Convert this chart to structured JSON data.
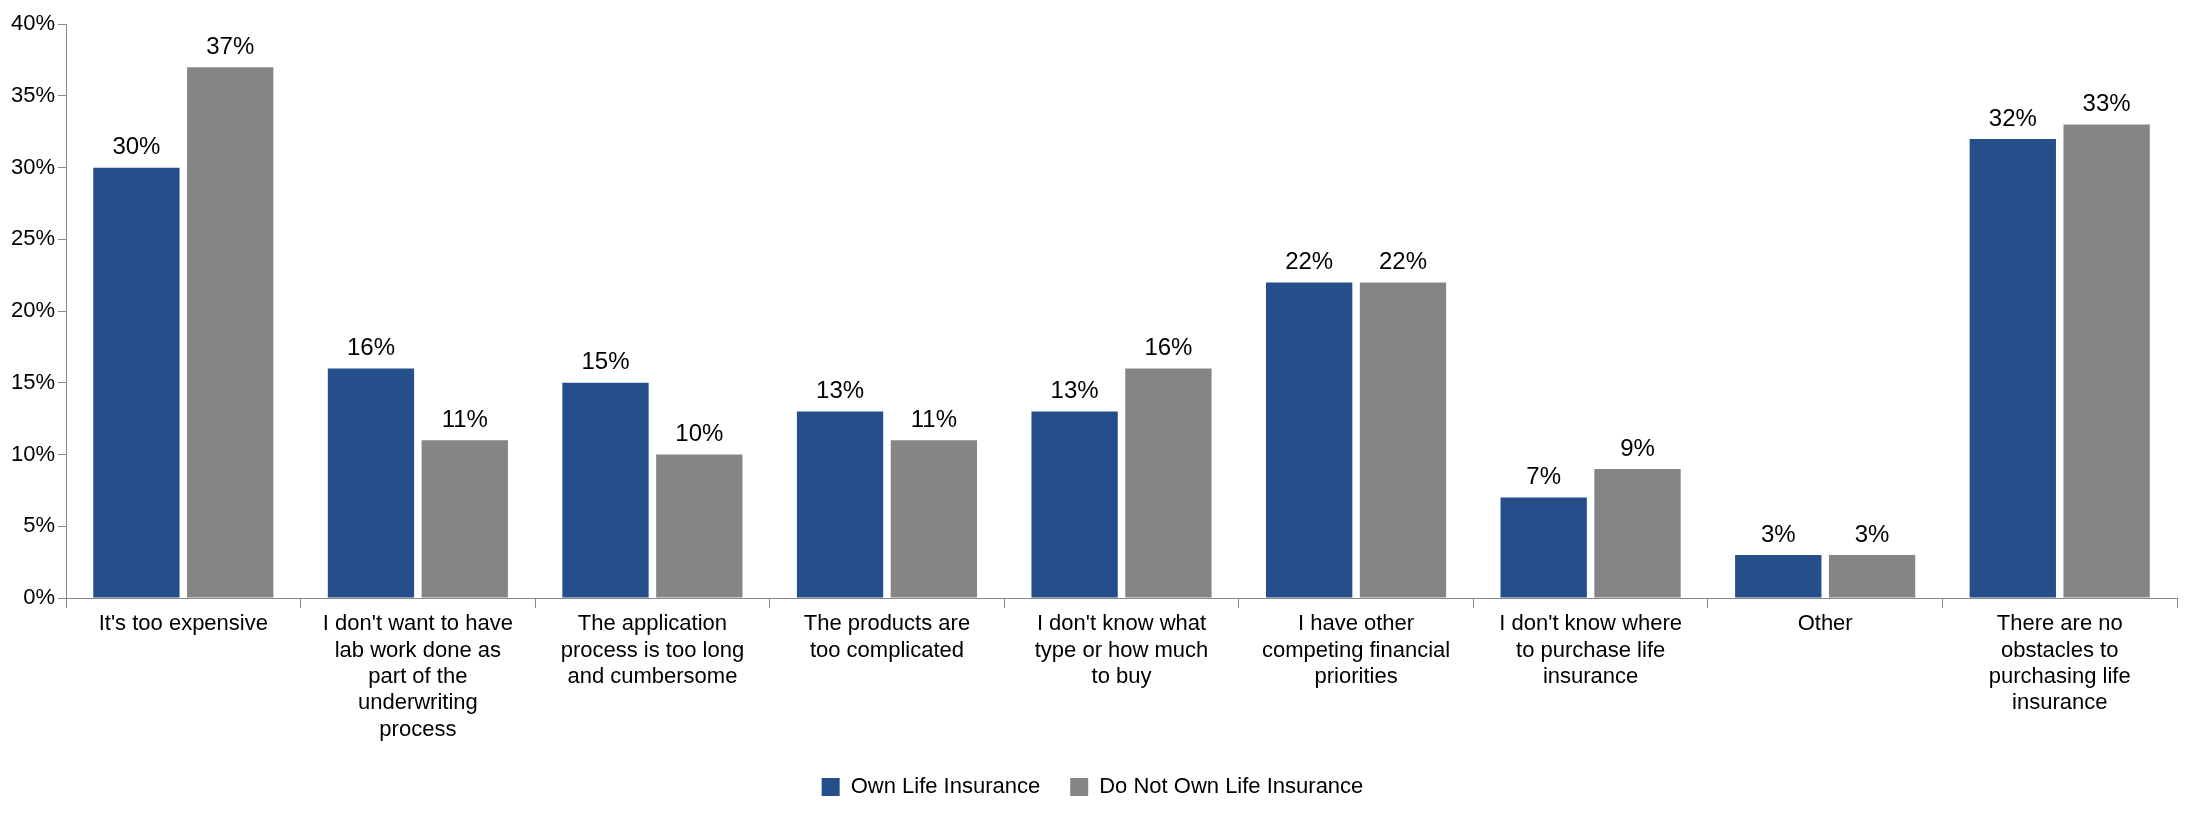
{
  "chart_data": {
    "type": "bar",
    "categories": [
      "It's too expensive",
      "I don't want to have lab work done as part of the underwriting process",
      "The application process is too long and cumbersome",
      "The products are too complicated",
      "I don't know what type or how much to buy",
      "I have other competing financial priorities",
      "I don't know where to purchase life insurance",
      "Other",
      "There are no obstacles to purchasing life insurance"
    ],
    "series": [
      {
        "name": "Own Life Insurance",
        "color": "#254f8a",
        "values": [
          30,
          16,
          15,
          13,
          13,
          22,
          7,
          3,
          32
        ],
        "value_labels": [
          "30%",
          "16%",
          "15%",
          "13%",
          "13%",
          "22%",
          "7%",
          "3%",
          "32%"
        ]
      },
      {
        "name": "Do Not Own Life Insurance",
        "color": "#858585",
        "values": [
          37,
          11,
          10,
          11,
          16,
          22,
          9,
          3,
          33
        ],
        "value_labels": [
          "37%",
          "11%",
          "10%",
          "11%",
          "16%",
          "22%",
          "9%",
          "3%",
          "33%"
        ]
      }
    ],
    "ylim": [
      0,
      40
    ],
    "yticks": [
      {
        "value": 0,
        "label": "0%"
      },
      {
        "value": 5,
        "label": "5%"
      },
      {
        "value": 10,
        "label": "10%"
      },
      {
        "value": 15,
        "label": "15%"
      },
      {
        "value": 20,
        "label": "20%"
      },
      {
        "value": 25,
        "label": "25%"
      },
      {
        "value": 30,
        "label": "30%"
      },
      {
        "value": 35,
        "label": "35%"
      },
      {
        "value": 40,
        "label": "40%"
      }
    ],
    "grid": false,
    "legend": "bottom"
  }
}
